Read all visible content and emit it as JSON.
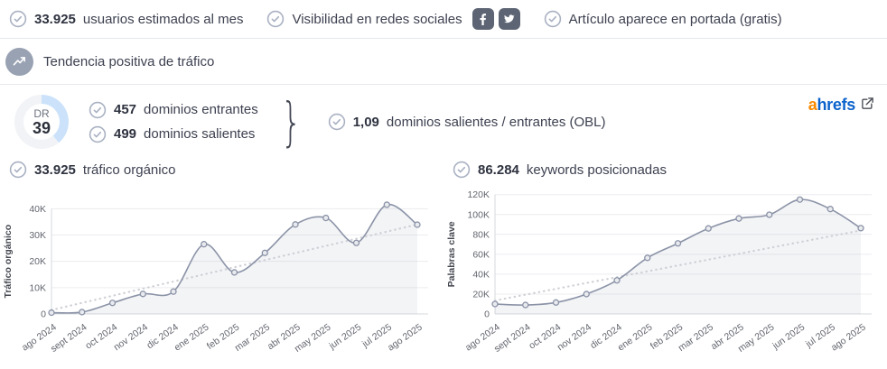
{
  "features": {
    "users": {
      "value": "33.925",
      "label": "usuarios estimados al mes"
    },
    "social": {
      "label": "Visibilidad en redes sociales",
      "icons": [
        "facebook-icon",
        "twitter-icon"
      ]
    },
    "frontpage": {
      "label": "Artículo aparece en portada (gratis)"
    }
  },
  "trend": {
    "label": "Tendencia positiva de tráfico"
  },
  "authority": {
    "dr_label": "DR",
    "dr_value": "39",
    "inbound": {
      "value": "457",
      "label": "dominios entrantes"
    },
    "outbound": {
      "value": "499",
      "label": "dominios salientes"
    },
    "brace": "}",
    "obl": {
      "value": "1,09",
      "label": "dominios salientes / entrantes (OBL)"
    },
    "brand": {
      "first": "a",
      "rest": "hrefs"
    }
  },
  "colors": {
    "donut_arc": "#cbe2fa",
    "donut_track": "#f1f3f6",
    "brand_orange": "#fb8a00",
    "brand_blue": "#0c63cc",
    "line": "#8b93a7",
    "check_icon": "#a9b1c2",
    "social_badge": "#5d6574",
    "trend_circle": "#99a2b3"
  },
  "chart_data": [
    {
      "type": "line",
      "title_value": "33.925",
      "title_label": "tráfico orgánico",
      "ylabel": "Tráfico orgánico",
      "xlabel": "",
      "legend": "none",
      "grid": true,
      "categories": [
        "ago 2024",
        "sept 2024",
        "oct 2024",
        "nov 2024",
        "dic 2024",
        "ene 2025",
        "feb 2025",
        "mar 2025",
        "abr 2025",
        "may 2025",
        "jun 2025",
        "jul 2025",
        "ago 2025"
      ],
      "values": [
        500,
        700,
        4200,
        7600,
        8500,
        26500,
        15800,
        23200,
        34000,
        36500,
        27000,
        41500,
        33925
      ],
      "trend": [
        1500,
        34000
      ],
      "yticks": [
        {
          "v": 0,
          "label": "0"
        },
        {
          "v": 10000,
          "label": "10K"
        },
        {
          "v": 20000,
          "label": "20K"
        },
        {
          "v": 30000,
          "label": "30K"
        },
        {
          "v": 40000,
          "label": "40K"
        }
      ],
      "ylim": [
        0,
        48000
      ]
    },
    {
      "type": "line",
      "title_value": "86.284",
      "title_label": "keywords posicionadas",
      "ylabel": "Palabras clave",
      "xlabel": "",
      "legend": "none",
      "grid": true,
      "categories": [
        "ago 2024",
        "sept 2024",
        "oct 2024",
        "nov 2024",
        "dic 2024",
        "ene 2025",
        "feb 2025",
        "mar 2025",
        "abr 2025",
        "may 2025",
        "jun 2025",
        "jul 2025",
        "ago 2025"
      ],
      "values": [
        10000,
        9000,
        11500,
        20000,
        33800,
        56400,
        71000,
        86000,
        96000,
        99800,
        115000,
        105500,
        86284
      ],
      "trend": [
        13500,
        84000
      ],
      "yticks": [
        {
          "v": 0,
          "label": "0"
        },
        {
          "v": 20000,
          "label": "20K"
        },
        {
          "v": 40000,
          "label": "40K"
        },
        {
          "v": 60000,
          "label": "60K"
        },
        {
          "v": 80000,
          "label": "80K"
        },
        {
          "v": 100000,
          "label": "100K"
        },
        {
          "v": 120000,
          "label": "120K"
        }
      ],
      "ylim": [
        0,
        127000
      ]
    }
  ]
}
